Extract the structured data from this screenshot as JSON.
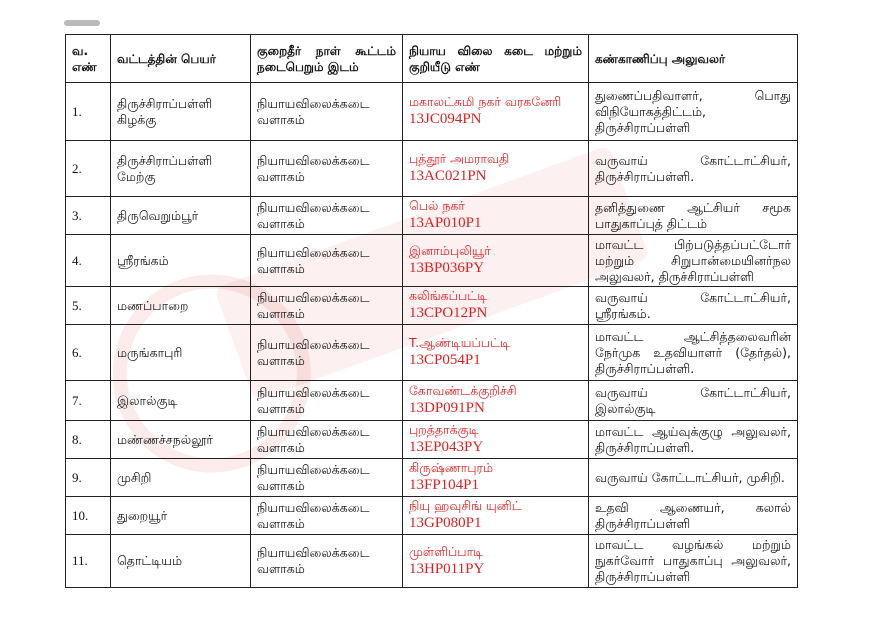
{
  "table": {
    "headers": [
      "வ. எண்",
      "வட்டத்தின் பெயர்",
      "குறைதீர் நாள் கூட்டம் நடைபெறும் இடம்",
      "நியாய விலை கடை மற்றும் குறியீடு எண்",
      "கண்காணிப்பு அலுவலர்"
    ],
    "rows": [
      {
        "no": "1.",
        "taluk": "திருச்சிராப்பள்ளி கிழக்கு",
        "venue": "நியாயவிலைக்கடை வளாகம்",
        "shop": "மகாலட்சுமி நகர் வரகனேரி",
        "code": "13JC094PN",
        "officer": "துணைப்பதிவாளர், பொது விநியோகத்திட்டம், திருச்சிராப்பள்ளி"
      },
      {
        "no": "2.",
        "taluk": "திருச்சிராப்பள்ளி மேற்கு",
        "venue": "நியாயவிலைக்கடை வளாகம்",
        "shop": "புத்தூர் அமராவதி",
        "code": "13AC021PN",
        "officer": "வருவாய் கோட்டாட்சியர், திருச்சிராப்பள்ளி."
      },
      {
        "no": "3.",
        "taluk": "திருவெறும்பூர்",
        "venue": "நியாயவிலைக்கடை வளாகம்",
        "shop": "பெல் நகர்",
        "code": "13AP010P1",
        "officer": "தனித்துணை ஆட்சியர் சமூக பாதுகாப்புத் திட்டம்"
      },
      {
        "no": "4.",
        "taluk": "ஸ்ரீரங்கம்",
        "venue": "நியாயவிலைக்கடை வளாகம்",
        "shop": "இனாம்புலியூர்",
        "code": "13BP036PY",
        "officer": "மாவட்ட பிற்படுத்தப்பட்டோர் மற்றும் சிறுபான்மையினர்நல அலுவலர், திருச்சிராப்பள்ளி"
      },
      {
        "no": "5.",
        "taluk": "மணப்பாறை",
        "venue": "நியாயவிலைக்கடை வளாகம்",
        "shop": "கலிங்கப்பட்டி",
        "code": "13CPO12PN",
        "officer": "வருவாய் கோட்டாட்சியர், ஸ்ரீரங்கம்."
      },
      {
        "no": "6.",
        "taluk": "மருங்காபுரி",
        "venue": "நியாயவிலைக்கடை வளாகம்",
        "shop": "T.ஆண்டியப்பட்டி",
        "code": "13CP054P1",
        "officer": "மாவட்ட ஆட்சித்தலைவரின் நேர்முக உதவியாளர் (தேர்தல்), திருச்சிராப்பள்ளி."
      },
      {
        "no": "7.",
        "taluk": "இலால்குடி",
        "venue": "நியாயவிலைக்கடை வளாகம்",
        "shop": "கோவண்டக்குறிச்சி",
        "code": "13DP091PN",
        "officer": "வருவாய் கோட்டாட்சியர், இலால்குடி"
      },
      {
        "no": "8.",
        "taluk": "மண்ணச்சநல்லூர்",
        "venue": "நியாயவிலைக்கடை வளாகம்",
        "shop": "புறத்தாக்குடி",
        "code": "13EP043PY",
        "officer": "மாவட்ட ஆய்வுக்குழு அலுவலர், திருச்சிராப்பள்ளி."
      },
      {
        "no": "9.",
        "taluk": "முசிறி",
        "venue": "நியாயவிலைக்கடை வளாகம்",
        "shop": "கிருஷ்ணாபுரம்",
        "code": "13FP104P1",
        "officer": "வருவாய் கோட்டாட்சியர், முசிறி."
      },
      {
        "no": "10.",
        "taluk": "துறையூர்",
        "venue": "நியாயவிலைக்கடை வளாகம்",
        "shop": "நியு ஹவுசிங் யுனிட்",
        "code": "13GP080P1",
        "officer": "உதவி ஆணையர், கலால் திருச்சிராப்பள்ளி"
      },
      {
        "no": "11.",
        "taluk": "தொட்டியம்",
        "venue": "நியாயவிலைக்கடை வளாகம்",
        "shop": "முள்ளிப்பாடி",
        "code": "13HP011PY",
        "officer": "மாவட்ட வழங்கல் மற்றும் நுகர்வோர் பாதுகாப்பு அலுவலர், திருச்சிராப்பள்ளி"
      }
    ]
  },
  "colors": {
    "shop_text": "#e02020",
    "border": "#222222",
    "watermark": "#dc3c3c"
  }
}
